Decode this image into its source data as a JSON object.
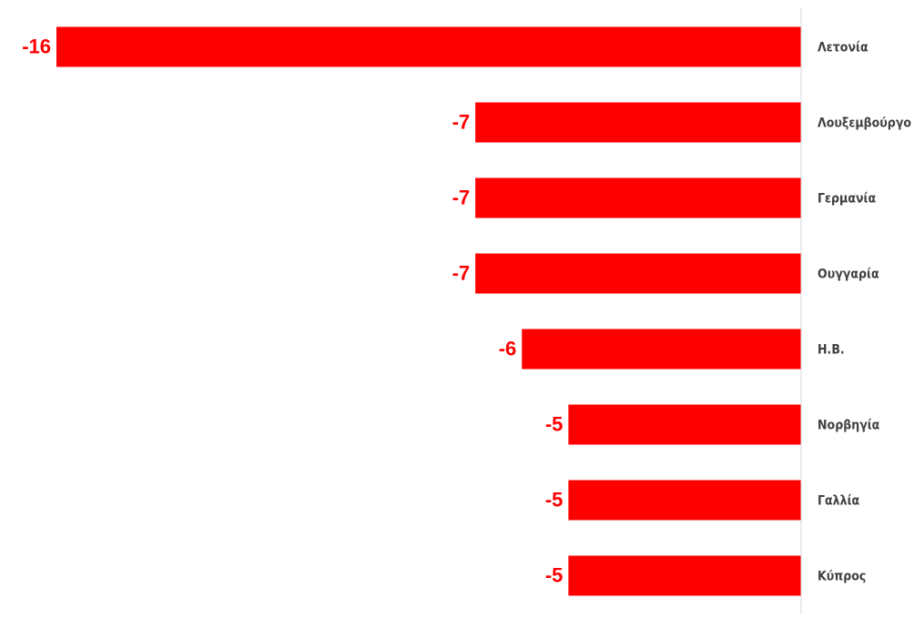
{
  "chart_data": {
    "type": "bar",
    "orientation": "horizontal",
    "categories": [
      "Λετονία",
      "Λουξεμβούργο",
      "Γερμανία",
      "Ουγγαρία",
      "Η.Β.",
      "Νορβηγία",
      "Γαλλία",
      "Κύπρος"
    ],
    "values": [
      -16,
      -7,
      -7,
      -7,
      -6,
      -5,
      -5,
      -5
    ],
    "color": "#ff0000",
    "xlim": [
      -16,
      0
    ],
    "grid": false
  }
}
